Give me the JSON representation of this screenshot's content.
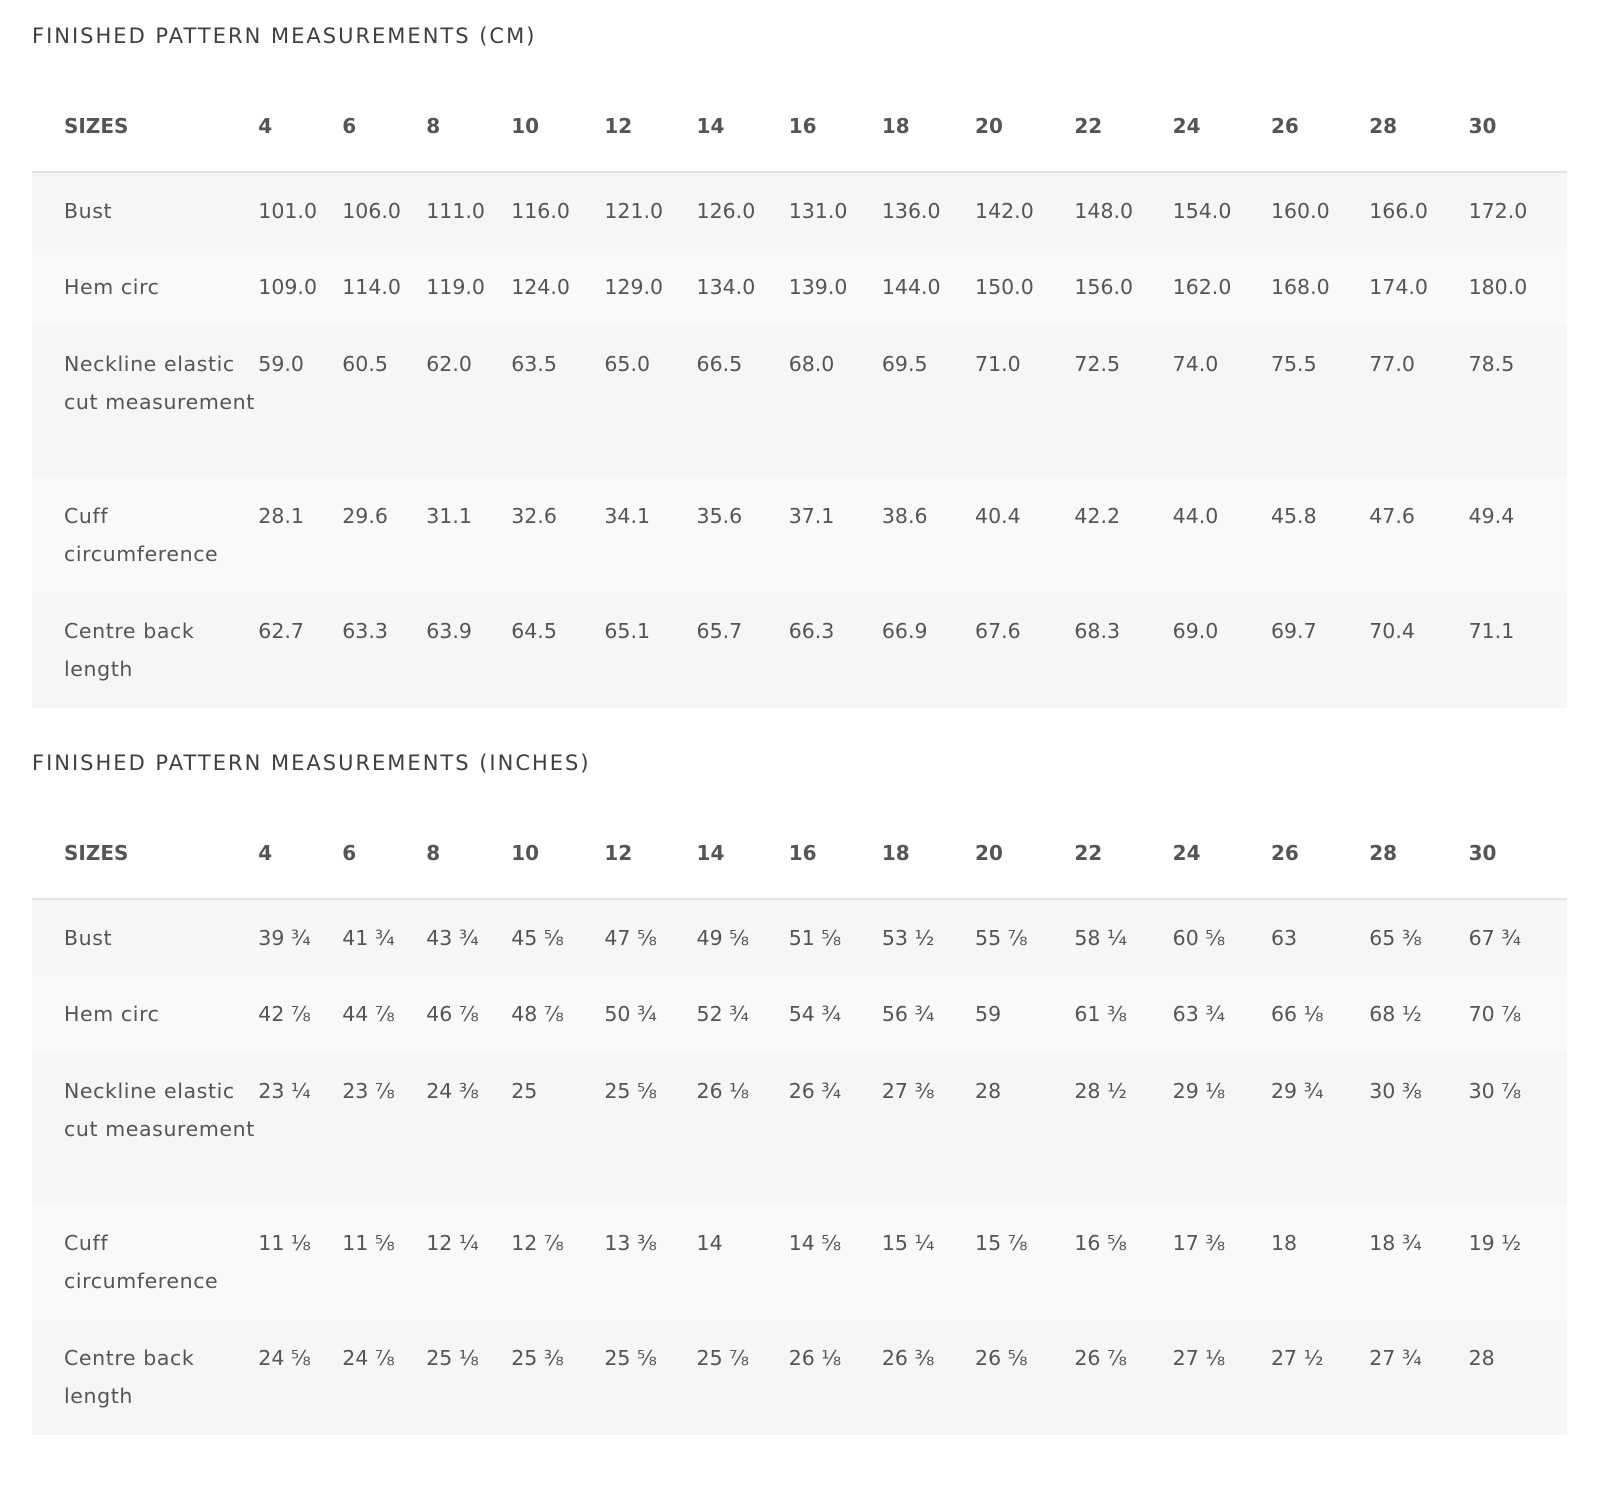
{
  "sizes_header": "SIZES",
  "sizes": [
    "4",
    "6",
    "8",
    "10",
    "12",
    "14",
    "16",
    "18",
    "20",
    "22",
    "24",
    "26",
    "28",
    "30"
  ],
  "cm": {
    "title": "FINISHED PATTERN MEASUREMENTS (CM)",
    "rows": [
      {
        "label": "Bust",
        "values": [
          "101.0",
          "106.0",
          "111.0",
          "116.0",
          "121.0",
          "126.0",
          "131.0",
          "136.0",
          "142.0",
          "148.0",
          "154.0",
          "160.0",
          "166.0",
          "172.0"
        ]
      },
      {
        "label": "Hem circ",
        "values": [
          "109.0",
          "114.0",
          "119.0",
          "124.0",
          "129.0",
          "134.0",
          "139.0",
          "144.0",
          "150.0",
          "156.0",
          "162.0",
          "168.0",
          "174.0",
          "180.0"
        ]
      },
      {
        "label": "Neckline elastic cut measurement",
        "values": [
          "59.0",
          "60.5",
          "62.0",
          "63.5",
          "65.0",
          "66.5",
          "68.0",
          "69.5",
          "71.0",
          "72.5",
          "74.0",
          "75.5",
          "77.0",
          "78.5"
        ]
      },
      {
        "label": "Cuff circumference",
        "values": [
          "28.1",
          "29.6",
          "31.1",
          "32.6",
          "34.1",
          "35.6",
          "37.1",
          "38.6",
          "40.4",
          "42.2",
          "44.0",
          "45.8",
          "47.6",
          "49.4"
        ]
      },
      {
        "label": "Centre back length",
        "values": [
          "62.7",
          "63.3",
          "63.9",
          "64.5",
          "65.1",
          "65.7",
          "66.3",
          "66.9",
          "67.6",
          "68.3",
          "69.0",
          "69.7",
          "70.4",
          "71.1"
        ]
      }
    ]
  },
  "inches": {
    "title": "FINISHED PATTERN MEASUREMENTS (INCHES)",
    "rows": [
      {
        "label": "Bust",
        "values": [
          "39 ¾",
          "41 ¾",
          "43 ¾",
          "45 ⅝",
          "47 ⅝",
          "49 ⅝",
          "51 ⅝",
          "53 ½",
          "55 ⅞",
          "58 ¼",
          "60 ⅝",
          "63",
          "65 ⅜",
          "67 ¾"
        ]
      },
      {
        "label": "Hem circ",
        "values": [
          "42 ⅞",
          "44 ⅞",
          "46 ⅞",
          "48 ⅞",
          "50 ¾",
          "52 ¾",
          "54 ¾",
          "56 ¾",
          "59",
          "61 ⅜",
          "63 ¾",
          "66 ⅛",
          "68 ½",
          "70 ⅞"
        ]
      },
      {
        "label": "Neckline elastic cut measurement",
        "values": [
          "23 ¼",
          "23 ⅞",
          "24 ⅜",
          "25",
          "25 ⅝",
          "26 ⅛",
          "26 ¾",
          "27 ⅜",
          "28",
          "28 ½",
          "29 ⅛",
          "29 ¾",
          "30 ⅜",
          "30 ⅞"
        ]
      },
      {
        "label": "Cuff circumference",
        "values": [
          "11 ⅛",
          "11 ⅝",
          "12 ¼",
          "12 ⅞",
          "13 ⅜",
          "14",
          "14 ⅝",
          "15 ¼",
          "15 ⅞",
          "16 ⅝",
          "17 ⅜",
          "18",
          "18 ¾",
          "19 ½"
        ]
      },
      {
        "label": "Centre back length",
        "values": [
          "24 ⅝",
          "24 ⅞",
          "25 ⅛",
          "25 ⅜",
          "25 ⅝",
          "25 ⅞",
          "26 ⅛",
          "26 ⅜",
          "26 ⅝",
          "26 ⅞",
          "27 ⅛",
          "27 ½",
          "27 ¾",
          "28"
        ]
      }
    ]
  }
}
